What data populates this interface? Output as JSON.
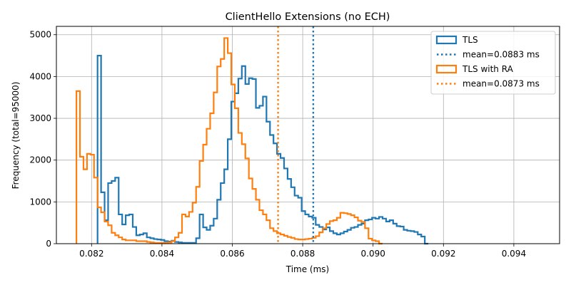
{
  "chart_data": {
    "type": "histogram",
    "title": "ClientHello Extensions (no ECH)",
    "xlabel": "Time (ms)",
    "ylabel": "Frequency (total=95000)",
    "xlim": [
      0.081,
      0.0953
    ],
    "ylim": [
      0,
      5200
    ],
    "xticks": [
      0.082,
      0.084,
      0.086,
      0.088,
      0.09,
      0.092,
      0.094
    ],
    "xtick_labels": [
      "0.082",
      "0.084",
      "0.086",
      "0.088",
      "0.090",
      "0.092",
      "0.094"
    ],
    "yticks": [
      0,
      1000,
      2000,
      3000,
      4000,
      5000
    ],
    "ytick_labels": [
      "0",
      "1000",
      "2000",
      "3000",
      "4000",
      "5000"
    ],
    "grid": true,
    "legend_position": "top-right",
    "series": [
      {
        "name": "TLS",
        "color": "#1f77b4",
        "bin_start": 0.08217,
        "bin_width": 0.0001,
        "counts": [
          4500,
          1230,
          560,
          1450,
          1500,
          1580,
          700,
          460,
          680,
          700,
          400,
          200,
          220,
          250,
          150,
          130,
          110,
          100,
          90,
          60,
          50,
          70,
          40,
          30,
          20,
          20,
          20,
          20,
          130,
          700,
          390,
          330,
          430,
          600,
          1050,
          1450,
          1780,
          2500,
          3400,
          3600,
          3950,
          4250,
          3820,
          3960,
          3940,
          3250,
          3300,
          3520,
          2920,
          2600,
          2400,
          2150,
          2050,
          1800,
          1550,
          1350,
          1150,
          1100,
          780,
          700,
          650,
          620,
          450,
          400,
          340,
          390,
          300,
          250,
          220,
          250,
          290,
          330,
          380,
          400,
          450,
          480,
          560,
          580,
          620,
          600,
          640,
          600,
          530,
          560,
          480,
          420,
          410,
          330,
          310,
          300,
          280,
          220,
          170,
          0
        ]
      },
      {
        "name": "TLS with RA",
        "color": "#ff7f0e",
        "bin_start": 0.08157,
        "bin_width": 0.0001,
        "counts": [
          3650,
          2080,
          1780,
          2150,
          2130,
          1580,
          870,
          750,
          530,
          440,
          260,
          200,
          150,
          100,
          80,
          80,
          80,
          60,
          60,
          60,
          40,
          30,
          20,
          20,
          20,
          20,
          30,
          60,
          150,
          260,
          700,
          650,
          760,
          980,
          1360,
          1980,
          2370,
          2750,
          3120,
          3620,
          4240,
          4420,
          4920,
          4560,
          3810,
          3240,
          2650,
          2380,
          2040,
          1560,
          1310,
          1050,
          800,
          700,
          560,
          370,
          300,
          250,
          220,
          190,
          160,
          140,
          110,
          100,
          100,
          110,
          120,
          140,
          180,
          270,
          370,
          470,
          540,
          560,
          620,
          740,
          730,
          710,
          680,
          630,
          550,
          520,
          370,
          120,
          80,
          60,
          0
        ]
      }
    ],
    "mean_lines": [
      {
        "label": "mean=0.0883 ms",
        "x": 0.0883,
        "color": "#1f77b4"
      },
      {
        "label": "mean=0.0873 ms",
        "x": 0.0873,
        "color": "#ff7f0e"
      }
    ],
    "legend": [
      {
        "label": "TLS",
        "style": "solid",
        "color": "#1f77b4"
      },
      {
        "label": "mean=0.0883 ms",
        "style": "dotted",
        "color": "#1f77b4"
      },
      {
        "label": "TLS with RA",
        "style": "solid",
        "color": "#ff7f0e"
      },
      {
        "label": "mean=0.0873 ms",
        "style": "dotted",
        "color": "#ff7f0e"
      }
    ]
  }
}
